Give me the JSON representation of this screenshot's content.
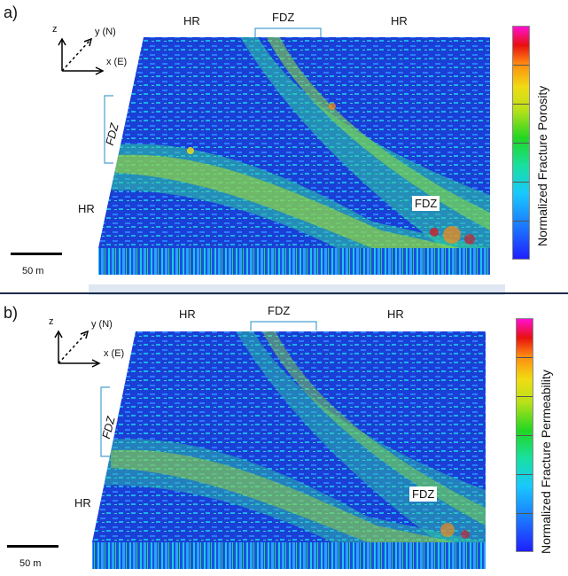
{
  "panels": [
    {
      "label": "a)",
      "axes": {
        "z": "z",
        "y": "y (N)",
        "x": "x (E)"
      },
      "top_labels": {
        "hr_left": "HR",
        "fdz": "FDZ",
        "hr_right": "HR"
      },
      "side_labels": {
        "fdz": "FDZ",
        "hr": "HR"
      },
      "inner_label": "FDZ",
      "scale": "50 m",
      "colorbar_title": "Normalized Fracture Porosity"
    },
    {
      "label": "b)",
      "axes": {
        "z": "z",
        "y": "y (N)",
        "x": "x (E)"
      },
      "top_labels": {
        "hr_left": "HR",
        "fdz": "FDZ",
        "hr_right": "HR"
      },
      "side_labels": {
        "fdz": "FDZ",
        "hr": "HR"
      },
      "inner_label": "FDZ",
      "scale": "50 m",
      "colorbar_title": "Normalized Fracture Permeability"
    }
  ],
  "colors": {
    "low": "#1f1fff",
    "mid": "#22d622",
    "high": "#e81010",
    "max": "#ff10d0"
  }
}
